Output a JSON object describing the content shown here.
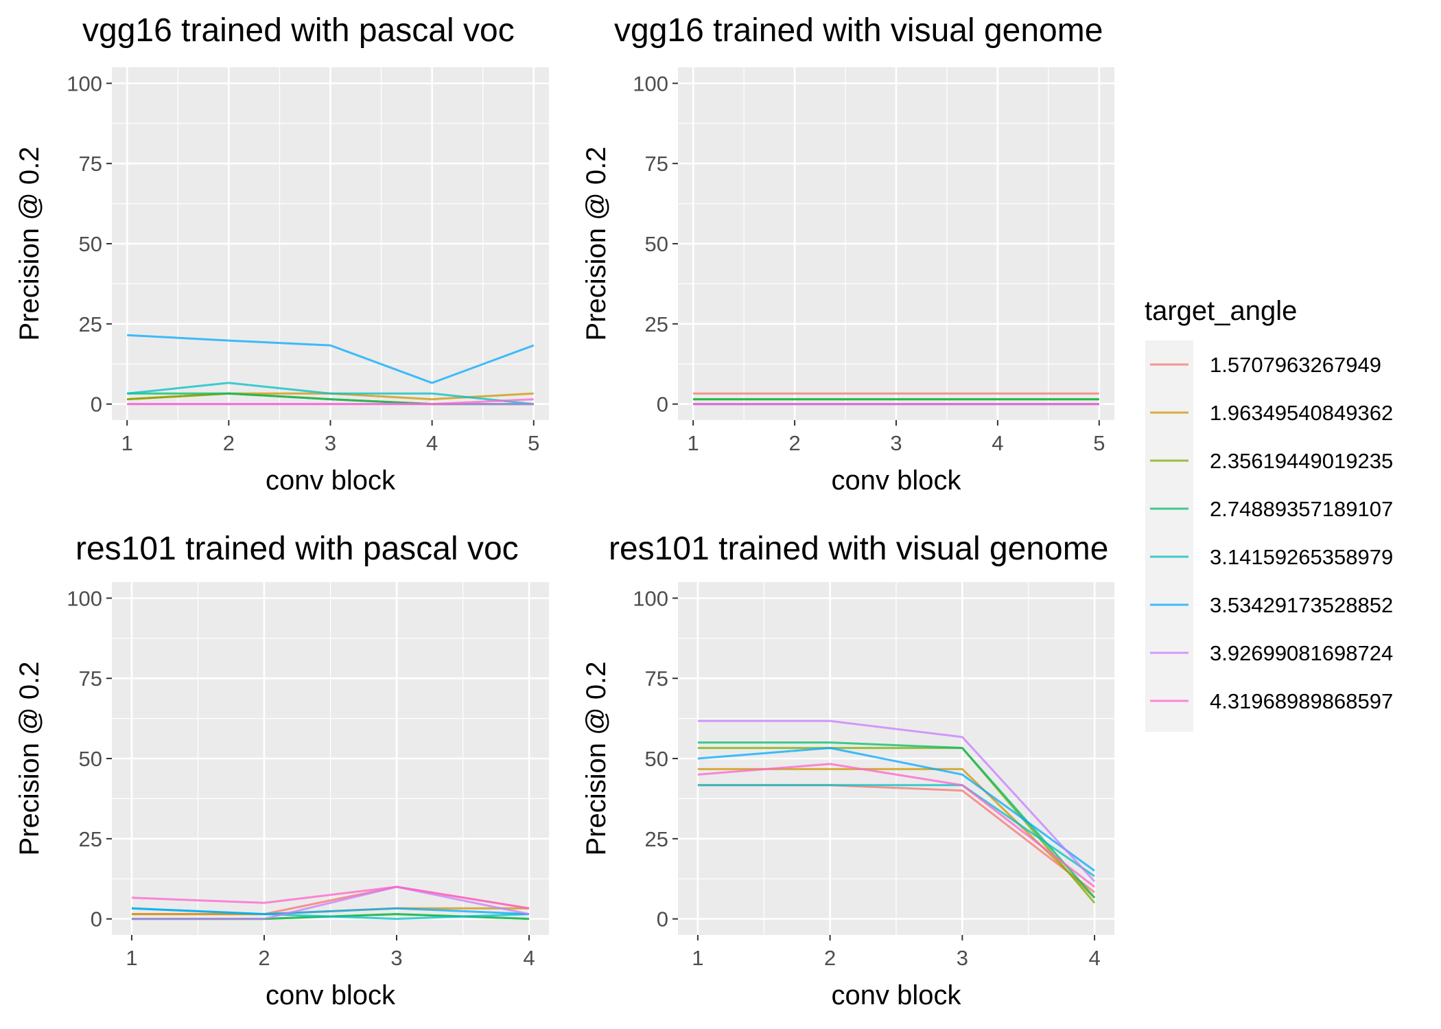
{
  "legend": {
    "title": "target_angle",
    "position": "right",
    "entries": [
      {
        "label": "1.5707963267949",
        "color": "#F8766D"
      },
      {
        "label": "1.96349540849362",
        "color": "#CD9600"
      },
      {
        "label": "2.35619449019235",
        "color": "#7CAE00"
      },
      {
        "label": "2.74889357189107",
        "color": "#00BE67"
      },
      {
        "label": "3.14159265358979",
        "color": "#00BFC4"
      },
      {
        "label": "3.53429173528852",
        "color": "#00A9FF"
      },
      {
        "label": "3.92699081698724",
        "color": "#C77CFF"
      },
      {
        "label": "4.31968989868597",
        "color": "#FF61CC"
      }
    ]
  },
  "chart_data": [
    {
      "type": "line",
      "title": "vgg16 trained with pascal voc",
      "xlabel": "conv block",
      "ylabel": "Precision @ 0.2",
      "x": [
        1,
        2,
        3,
        4,
        5
      ],
      "xlim": [
        0.85,
        5.15
      ],
      "ylim": [
        -5,
        105
      ],
      "yticks": [
        0,
        25,
        50,
        75,
        100
      ],
      "grid": true,
      "series": [
        {
          "name": "1.5707963267949",
          "values": [
            1.5,
            3.3,
            1.5,
            0,
            0
          ]
        },
        {
          "name": "1.96349540849362",
          "values": [
            1.5,
            3.3,
            3.3,
            1.5,
            3.3
          ]
        },
        {
          "name": "2.35619449019235",
          "values": [
            1.5,
            3.3,
            1.5,
            0,
            0
          ]
        },
        {
          "name": "2.74889357189107",
          "values": [
            3.3,
            3.3,
            1.5,
            0,
            0
          ]
        },
        {
          "name": "3.14159265358979",
          "values": [
            3.3,
            6.6,
            3.3,
            3.3,
            0
          ]
        },
        {
          "name": "3.53429173528852",
          "values": [
            21.5,
            19.8,
            18.3,
            6.6,
            18.3
          ]
        },
        {
          "name": "3.92699081698724",
          "values": [
            0,
            0,
            0,
            0,
            0
          ]
        },
        {
          "name": "4.31968989868597",
          "values": [
            0,
            0,
            0,
            0,
            1.5
          ]
        }
      ]
    },
    {
      "type": "line",
      "title": "vgg16 trained with visual genome",
      "xlabel": "conv block",
      "ylabel": "Precision @ 0.2",
      "x": [
        1,
        2,
        3,
        4,
        5
      ],
      "xlim": [
        0.85,
        5.15
      ],
      "ylim": [
        -5,
        105
      ],
      "yticks": [
        0,
        25,
        50,
        75,
        100
      ],
      "grid": true,
      "series": [
        {
          "name": "1.5707963267949",
          "values": [
            3.3,
            3.3,
            3.3,
            3.3,
            3.3
          ]
        },
        {
          "name": "1.96349540849362",
          "values": [
            1.5,
            1.5,
            1.5,
            1.5,
            1.5
          ]
        },
        {
          "name": "2.35619449019235",
          "values": [
            1.5,
            1.5,
            1.5,
            1.5,
            1.5
          ]
        },
        {
          "name": "2.74889357189107",
          "values": [
            1.5,
            1.5,
            1.5,
            1.5,
            1.5
          ]
        },
        {
          "name": "3.14159265358979",
          "values": [
            0,
            0,
            0,
            0,
            0
          ]
        },
        {
          "name": "3.53429173528852",
          "values": [
            0,
            0,
            0,
            0,
            0
          ]
        },
        {
          "name": "3.92699081698724",
          "values": [
            0,
            0,
            0,
            0,
            0
          ]
        },
        {
          "name": "4.31968989868597",
          "values": [
            0,
            0,
            0,
            0,
            0
          ]
        }
      ]
    },
    {
      "type": "line",
      "title": "res101 trained with pascal voc",
      "xlabel": "conv block",
      "ylabel": "Precision @ 0.2",
      "x": [
        1,
        2,
        3,
        4
      ],
      "xlim": [
        0.85,
        4.15
      ],
      "ylim": [
        -5,
        105
      ],
      "yticks": [
        0,
        25,
        50,
        75,
        100
      ],
      "grid": true,
      "series": [
        {
          "name": "1.5707963267949",
          "values": [
            1.5,
            1.5,
            10,
            3.3
          ]
        },
        {
          "name": "1.96349540849362",
          "values": [
            1.5,
            1.5,
            3.3,
            3.3
          ]
        },
        {
          "name": "2.35619449019235",
          "values": [
            0,
            0,
            1.5,
            0
          ]
        },
        {
          "name": "2.74889357189107",
          "values": [
            0,
            0,
            1.5,
            0
          ]
        },
        {
          "name": "3.14159265358979",
          "values": [
            3.3,
            1.5,
            0,
            1.5
          ]
        },
        {
          "name": "3.53429173528852",
          "values": [
            3.3,
            1.5,
            3.3,
            1.5
          ]
        },
        {
          "name": "3.92699081698724",
          "values": [
            0,
            0,
            10,
            1.5
          ]
        },
        {
          "name": "4.31968989868597",
          "values": [
            6.6,
            5,
            10,
            3.3
          ]
        }
      ]
    },
    {
      "type": "line",
      "title": "res101 trained with visual genome",
      "xlabel": "conv block",
      "ylabel": "Precision @ 0.2",
      "x": [
        1,
        2,
        3,
        4
      ],
      "xlim": [
        0.85,
        4.15
      ],
      "ylim": [
        -5,
        105
      ],
      "yticks": [
        0,
        25,
        50,
        75,
        100
      ],
      "grid": true,
      "series": [
        {
          "name": "1.5707963267949",
          "values": [
            41.7,
            41.7,
            40,
            8.3
          ]
        },
        {
          "name": "1.96349540849362",
          "values": [
            46.7,
            46.7,
            46.7,
            6.6
          ]
        },
        {
          "name": "2.35619449019235",
          "values": [
            53.3,
            53.3,
            53.3,
            5
          ]
        },
        {
          "name": "2.74889357189107",
          "values": [
            55,
            55,
            53.3,
            6.6
          ]
        },
        {
          "name": "3.14159265358979",
          "values": [
            41.7,
            41.7,
            41.7,
            13.3
          ]
        },
        {
          "name": "3.53429173528852",
          "values": [
            50,
            53.3,
            45,
            15
          ]
        },
        {
          "name": "3.92699081698724",
          "values": [
            61.7,
            61.7,
            56.7,
            11.7
          ]
        },
        {
          "name": "4.31968989868597",
          "values": [
            45,
            48.3,
            41.7,
            10
          ]
        }
      ]
    }
  ]
}
